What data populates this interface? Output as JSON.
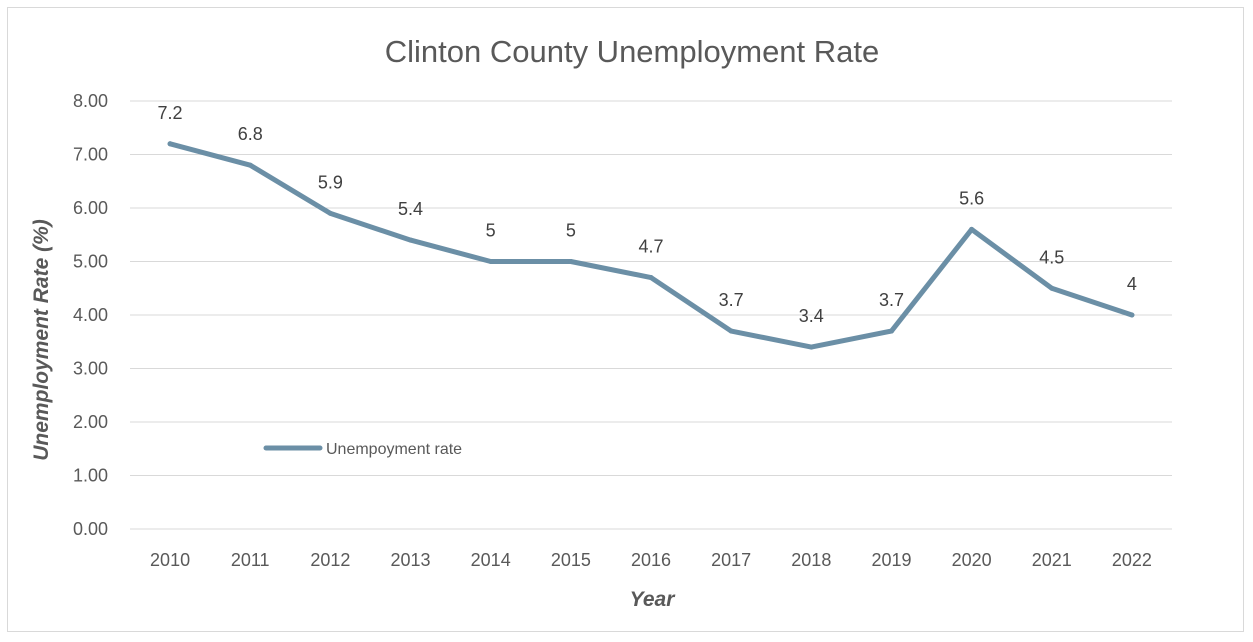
{
  "chart_data": {
    "type": "line",
    "title": "Clinton County Unemployment Rate",
    "xlabel": "Year",
    "ylabel": "Unemployment Rate (%)",
    "categories": [
      "2010",
      "2011",
      "2012",
      "2013",
      "2014",
      "2015",
      "2016",
      "2017",
      "2018",
      "2019",
      "2020",
      "2021",
      "2022"
    ],
    "series": [
      {
        "name": "Unempoyment rate",
        "values": [
          7.2,
          6.8,
          5.9,
          5.4,
          5,
          5,
          4.7,
          3.7,
          3.4,
          3.7,
          5.6,
          4.5,
          4
        ],
        "labels": [
          "7.2",
          "6.8",
          "5.9",
          "5.4",
          "5",
          "5",
          "4.7",
          "3.7",
          "3.4",
          "3.7",
          "5.6",
          "4.5",
          "4"
        ],
        "color": "#6b8fa6"
      }
    ],
    "ylim": [
      0,
      8
    ],
    "yticks": [
      "0.00",
      "1.00",
      "2.00",
      "3.00",
      "4.00",
      "5.00",
      "6.00",
      "7.00",
      "8.00"
    ],
    "grid": true,
    "legend_position": "inside-lower-left"
  },
  "colors": {
    "gridline": "#d9d9d9",
    "text": "#595959"
  }
}
